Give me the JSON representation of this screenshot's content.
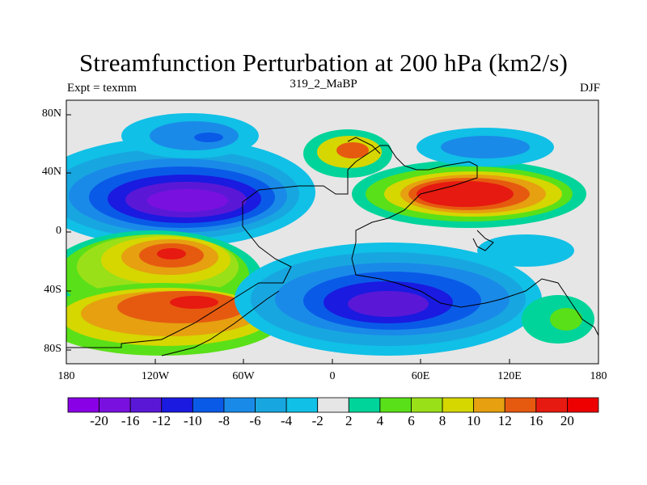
{
  "title": "Streamfunction Perturbation at 200 hPa (km2/s)",
  "subtitle_left": "Expt = texmm",
  "subtitle_center": "319_2_MaBP",
  "subtitle_right": "DJF",
  "lat_ticks": [
    "80N",
    "40N",
    "0",
    "40S",
    "80S"
  ],
  "lon_ticks": [
    "180",
    "120W",
    "60W",
    "0",
    "60E",
    "120E",
    "180"
  ],
  "colorbar": {
    "labels": [
      "-20",
      "-16",
      "-12",
      "-10",
      "-8",
      "-6",
      "-4",
      "-2",
      "2",
      "4",
      "6",
      "8",
      "10",
      "12",
      "16",
      "20"
    ],
    "colors": [
      "#8a00e6",
      "#7a10e0",
      "#5a18d6",
      "#1a1ae0",
      "#0a5ae8",
      "#1a8ae8",
      "#18a6e0",
      "#10c0e6",
      "#e6e6e6",
      "#00d49a",
      "#5ae018",
      "#9ae018",
      "#d6d600",
      "#e6a010",
      "#e65a10",
      "#e61a10",
      "#ee0000"
    ]
  }
}
